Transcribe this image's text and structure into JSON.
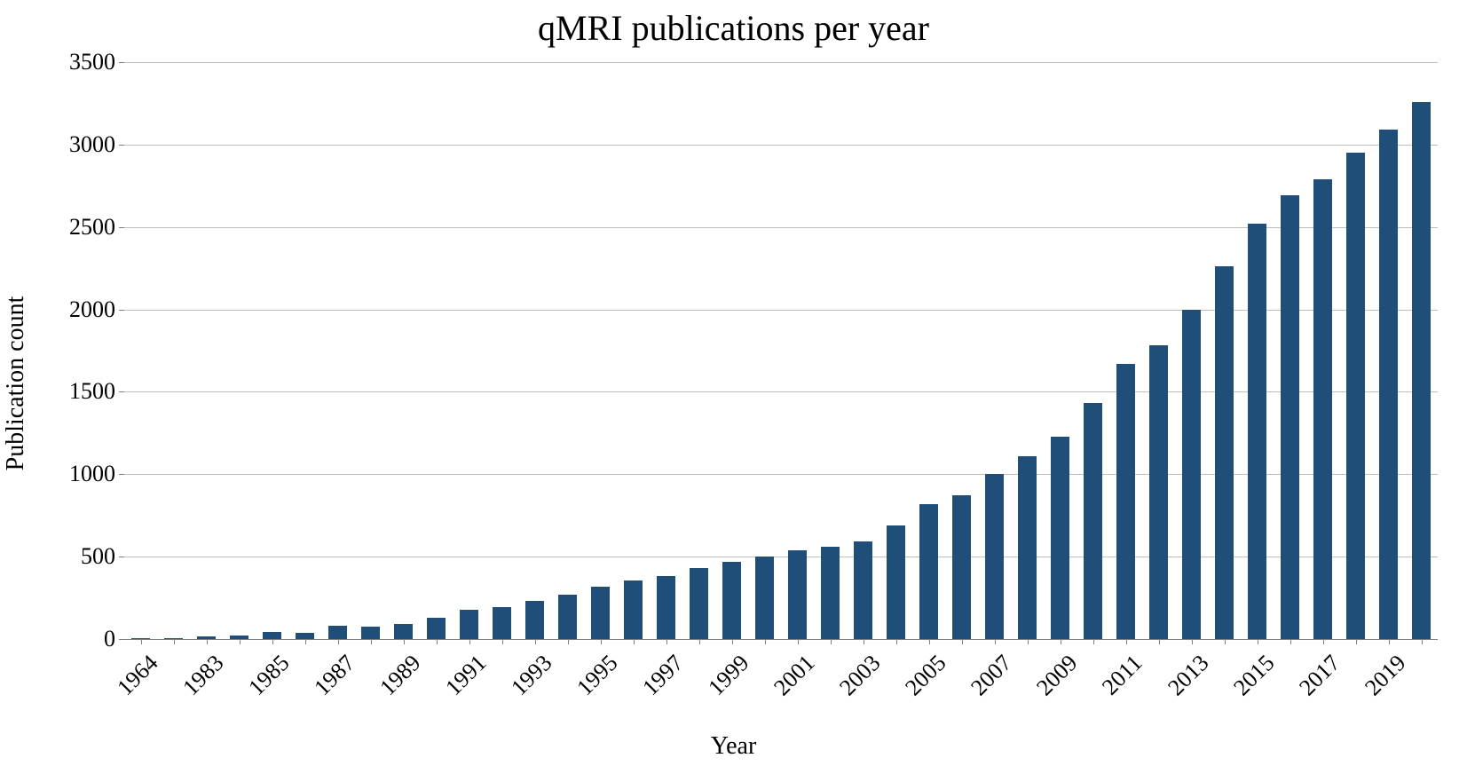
{
  "chart": {
    "type": "bar",
    "title": "qMRI publications per year",
    "title_fontsize": 40,
    "ylabel": "Publication count",
    "xlabel": "Year",
    "label_fontsize": 28,
    "tick_fontsize": 26,
    "background_color": "#ffffff",
    "grid_color": "#bfbfbf",
    "axis_color": "#808080",
    "bar_color": "#1f4e79",
    "ylim": [
      0,
      3500
    ],
    "ytick_step": 500,
    "yticks": [
      0,
      500,
      1000,
      1500,
      2000,
      2500,
      3000,
      3500
    ],
    "bar_width_ratio": 0.55,
    "xtick_rotation_deg": -45,
    "xtick_label_every": 2,
    "categories": [
      "1964",
      "1982",
      "1983",
      "1984",
      "1985",
      "1986",
      "1987",
      "1988",
      "1989",
      "1990",
      "1991",
      "1992",
      "1993",
      "1994",
      "1995",
      "1996",
      "1997",
      "1998",
      "1999",
      "2000",
      "2001",
      "2002",
      "2003",
      "2004",
      "2005",
      "2006",
      "2007",
      "2008",
      "2009",
      "2010",
      "2011",
      "2012",
      "2013",
      "2014",
      "2015",
      "2016",
      "2017",
      "2018",
      "2019",
      "2020"
    ],
    "values": [
      3,
      8,
      15,
      20,
      45,
      40,
      80,
      75,
      90,
      130,
      180,
      195,
      230,
      270,
      320,
      355,
      380,
      430,
      470,
      500,
      540,
      560,
      590,
      690,
      820,
      870,
      1000,
      1110,
      1230,
      1430,
      1670,
      1780,
      2000,
      2260,
      2520,
      2690,
      2790,
      2950,
      3090,
      3260
    ]
  }
}
